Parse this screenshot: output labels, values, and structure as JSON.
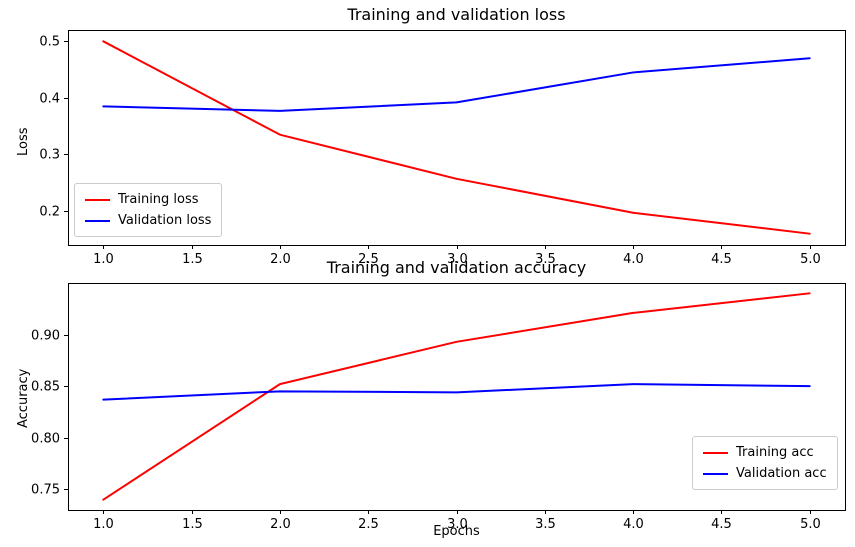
{
  "figure": {
    "background": "#ffffff",
    "frame_color": "#000000"
  },
  "chart_data": [
    {
      "type": "line",
      "title": "Training and validation loss",
      "xlabel": "",
      "ylabel": "Loss",
      "x": [
        1,
        2,
        3,
        4,
        5
      ],
      "xlim": [
        0.8,
        5.2
      ],
      "ylim": [
        0.14,
        0.52
      ],
      "xticks": [
        1.0,
        1.5,
        2.0,
        2.5,
        3.0,
        3.5,
        4.0,
        4.5,
        5.0
      ],
      "xtick_labels": [
        "1.0",
        "1.5",
        "2.0",
        "2.5",
        "3.0",
        "3.5",
        "4.0",
        "4.5",
        "5.0"
      ],
      "yticks": [
        0.2,
        0.3,
        0.4,
        0.5
      ],
      "ytick_labels": [
        "0.2",
        "0.3",
        "0.4",
        "0.5"
      ],
      "grid": false,
      "legend_pos": "lower left",
      "series": [
        {
          "name": "Training loss",
          "color": "#ff0000",
          "values": [
            0.5,
            0.335,
            0.257,
            0.197,
            0.16
          ]
        },
        {
          "name": "Validation loss",
          "color": "#0000ff",
          "values": [
            0.385,
            0.377,
            0.392,
            0.445,
            0.47
          ]
        }
      ]
    },
    {
      "type": "line",
      "title": "Training and validation accuracy",
      "xlabel": "Epochs",
      "ylabel": "Accuracy",
      "x": [
        1,
        2,
        3,
        4,
        5
      ],
      "xlim": [
        0.8,
        5.2
      ],
      "ylim": [
        0.73,
        0.95
      ],
      "xticks": [
        1.0,
        1.5,
        2.0,
        2.5,
        3.0,
        3.5,
        4.0,
        4.5,
        5.0
      ],
      "xtick_labels": [
        "1.0",
        "1.5",
        "2.0",
        "2.5",
        "3.0",
        "3.5",
        "4.0",
        "4.5",
        "5.0"
      ],
      "yticks": [
        0.75,
        0.8,
        0.85,
        0.9
      ],
      "ytick_labels": [
        "0.75",
        "0.80",
        "0.85",
        "0.90"
      ],
      "grid": false,
      "legend_pos": "lower right",
      "series": [
        {
          "name": "Training acc",
          "color": "#ff0000",
          "values": [
            0.74,
            0.852,
            0.893,
            0.921,
            0.94
          ]
        },
        {
          "name": "Validation acc",
          "color": "#0000ff",
          "values": [
            0.837,
            0.845,
            0.844,
            0.852,
            0.85
          ]
        }
      ]
    }
  ]
}
